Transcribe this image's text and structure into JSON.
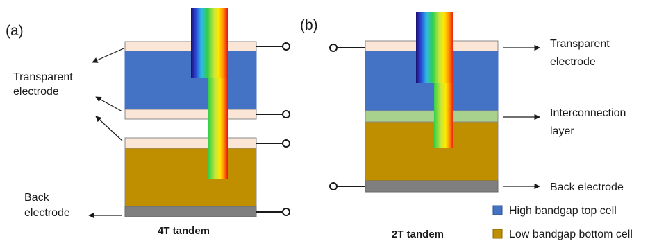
{
  "panels": {
    "a": {
      "tag": "(a)",
      "caption": "4T tandem",
      "labels": {
        "transparent_line1": "Transparent",
        "transparent_line2": "electrode",
        "back_line1": "Back",
        "back_line2": "electrode"
      }
    },
    "b": {
      "tag": "(b)",
      "caption": "2T tandem",
      "labels": {
        "transparent_line1": "Transparent",
        "transparent_line2": "electrode",
        "interconnection_line1": "Interconnection",
        "interconnection_line2": "layer",
        "back": "Back electrode"
      }
    }
  },
  "legend": [
    {
      "label": "High bandgap top cell",
      "color": "#4472c4"
    },
    {
      "label": "Low bandgap bottom cell",
      "color": "#bf8f00"
    }
  ],
  "colors": {
    "transparent_electrode": "#fbe5d6",
    "top_cell": "#4472c4",
    "bottom_cell": "#bf8f00",
    "interconnection": "#a9d18e",
    "back_electrode": "#7f7f7f"
  }
}
